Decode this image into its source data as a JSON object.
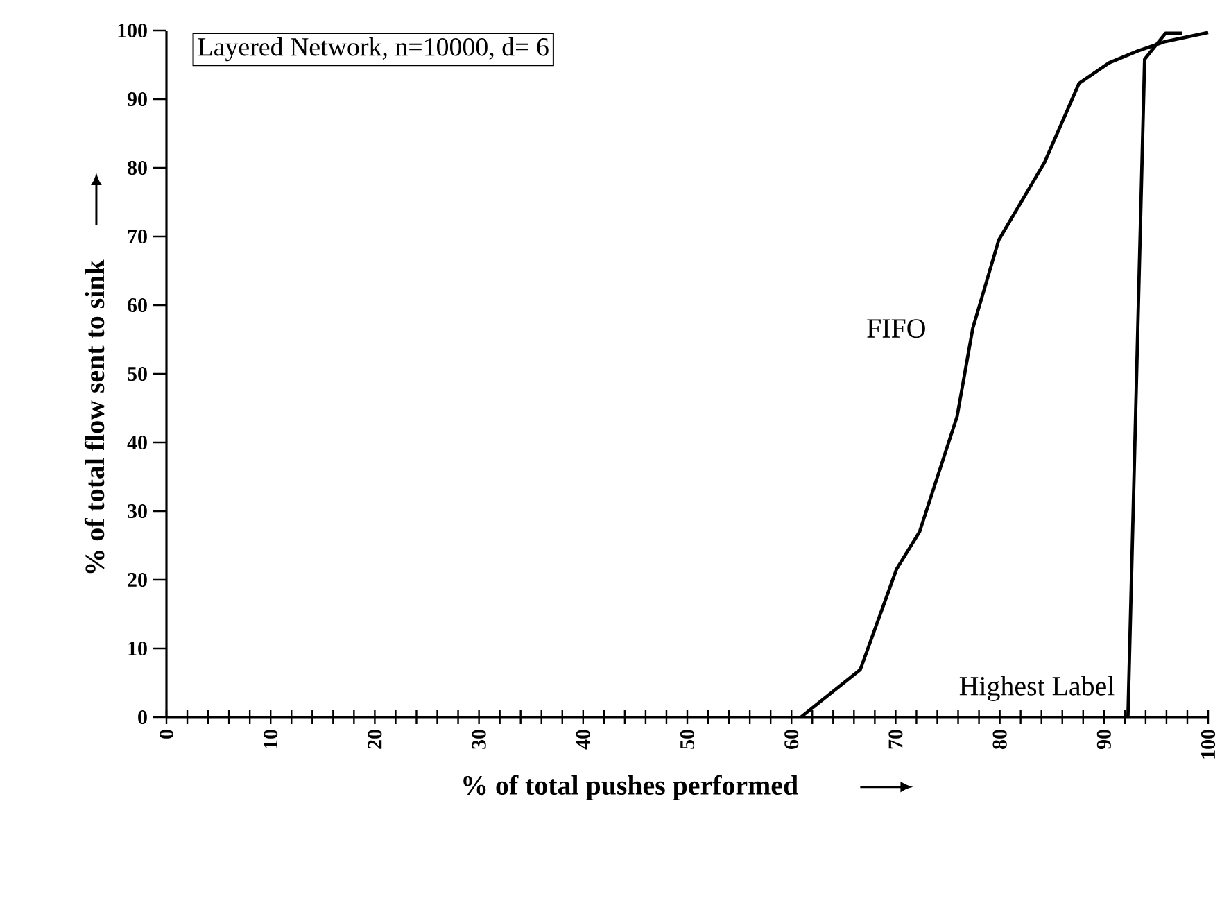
{
  "chart_data": {
    "type": "line",
    "title": "Layered Network, n=10000, d= 6",
    "xlabel": "% of total pushes performed",
    "ylabel": "% of total flow sent to sink",
    "xlim": [
      0,
      100
    ],
    "ylim": [
      0,
      100
    ],
    "xticks": [
      0,
      {
        "value": 2,
        "label": null
      },
      {
        "value": 4,
        "label": null
      },
      {
        "value": 6,
        "label": null
      },
      {
        "value": 8,
        "label": null
      },
      10,
      {
        "value": 12,
        "label": null
      },
      {
        "value": 14,
        "label": null
      },
      {
        "value": 16,
        "label": null
      },
      {
        "value": 18,
        "label": null
      },
      20,
      {
        "value": 22,
        "label": null
      },
      {
        "value": 24,
        "label": null
      },
      {
        "value": 26,
        "label": null
      },
      {
        "value": 28,
        "label": null
      },
      30,
      {
        "value": 32,
        "label": null
      },
      {
        "value": 34,
        "label": null
      },
      {
        "value": 36,
        "label": null
      },
      {
        "value": 38,
        "label": null
      },
      40,
      {
        "value": 42,
        "label": null
      },
      {
        "value": 44,
        "label": null
      },
      {
        "value": 46,
        "label": null
      },
      {
        "value": 48,
        "label": null
      },
      50,
      {
        "value": 52,
        "label": null
      },
      {
        "value": 54,
        "label": null
      },
      {
        "value": 56,
        "label": null
      },
      {
        "value": 58,
        "label": null
      },
      60,
      {
        "value": 62,
        "label": null
      },
      {
        "value": 64,
        "label": null
      },
      {
        "value": 66,
        "label": null
      },
      {
        "value": 68,
        "label": null
      },
      70,
      {
        "value": 72,
        "label": null
      },
      {
        "value": 74,
        "label": null
      },
      {
        "value": 76,
        "label": null
      },
      {
        "value": 78,
        "label": null
      },
      80,
      {
        "value": 82,
        "label": null
      },
      {
        "value": 84,
        "label": null
      },
      {
        "value": 86,
        "label": null
      },
      {
        "value": 88,
        "label": null
      },
      90,
      {
        "value": 92,
        "label": null
      },
      {
        "value": 94,
        "label": null
      },
      {
        "value": 96,
        "label": null
      },
      {
        "value": 98,
        "label": null
      },
      100
    ],
    "yticks": [
      0,
      10,
      20,
      30,
      40,
      50,
      60,
      70,
      80,
      90,
      100
    ],
    "grid": false,
    "marker": "none",
    "line_style": "solid",
    "series": [
      {
        "name": "FIFO",
        "color": "#000000",
        "x": [
          60.9,
          66.6,
          70.1,
          72.3,
          75.9,
          77.4,
          79.9,
          84.3,
          87.6,
          90.5,
          93.2,
          95.9,
          100
        ],
        "values": [
          0,
          6.9,
          21.6,
          27,
          43.8,
          56.6,
          69.5,
          80.8,
          92.3,
          95.3,
          97,
          98.4,
          99.7
        ]
      },
      {
        "name": "Highest Label",
        "color": "#000000",
        "x": [
          92.3,
          93.9,
          95.9,
          97.5
        ],
        "values": [
          0,
          95.8,
          99.6,
          99.6
        ]
      }
    ]
  }
}
